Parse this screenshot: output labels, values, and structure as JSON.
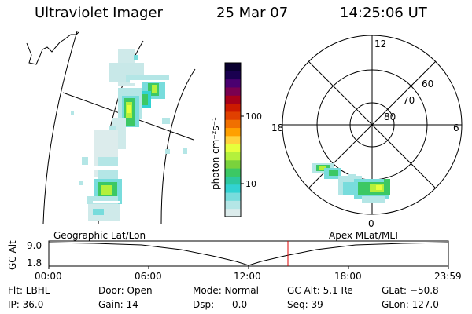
{
  "header": {
    "instrument": "Ultraviolet Imager",
    "date": "25 Mar 07",
    "time": "14:25:06 UT"
  },
  "colorbar": {
    "unit_label": "photon cm⁻²s⁻¹",
    "ticks": [
      "100",
      "10"
    ],
    "colors": [
      "#0a0030",
      "#1a0050",
      "#4a0070",
      "#7a0050",
      "#a8001a",
      "#cc1a00",
      "#e04000",
      "#f07000",
      "#ffa000",
      "#ffd23c",
      "#e6ff3c",
      "#b4f03c",
      "#7ad23c",
      "#3cc864",
      "#2dc8a0",
      "#32d2d2",
      "#78dcdc",
      "#b4e6e6",
      "#dcecec"
    ]
  },
  "polar": {
    "lat_labels": [
      "60",
      "70",
      "80"
    ],
    "mlt_labels": {
      "top": "12",
      "left": "18",
      "right": "6",
      "bottom": "0"
    }
  },
  "timeline": {
    "ylabel": "GC Alt",
    "ytick_top": "9.0",
    "ytick_bottom": "1.8",
    "left_title": "Geographic Lat/Lon",
    "right_title": "Apex MLat/MLT",
    "xticks": [
      "00:00",
      "06:00",
      "12:00",
      "18:00",
      "23:59"
    ],
    "marker_color": "#dd0000"
  },
  "info": {
    "flt": "Flt: LBHL",
    "ip": "IP: 36.0",
    "door": "Door: Open",
    "gain": "Gain: 14",
    "mode": "Mode: Normal",
    "dsp": "Dsp:      0.0",
    "gcalt": "GC Alt: 5.1 Re",
    "seq": "Seq: 39",
    "glat": "GLat: −50.8",
    "glon": "GLon: 127.0"
  }
}
